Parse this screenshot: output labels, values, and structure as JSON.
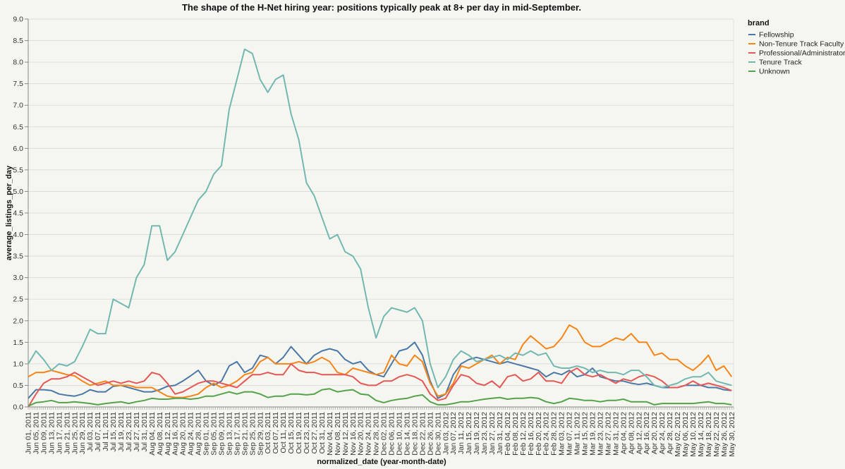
{
  "chart_data": {
    "type": "line",
    "title": "The shape of the H-Net hiring year: positions typically peak at 8+ per day in mid-September.",
    "xlabel": "normalized_date (year-month-date)",
    "ylabel": "average_listings_per_day",
    "ylim": [
      0,
      9
    ],
    "yticks": [
      "0.0",
      "0.5",
      "1.0",
      "1.5",
      "2.0",
      "2.5",
      "3.0",
      "3.5",
      "4.0",
      "4.5",
      "5.0",
      "5.5",
      "6.0",
      "6.5",
      "7.0",
      "7.5",
      "8.0",
      "8.5",
      "9.0"
    ],
    "grid": true,
    "legend": {
      "title": "brand",
      "placement": "right"
    },
    "x": [
      "Jun 01, 2011",
      "Jun 05, 2011",
      "Jun 09, 2011",
      "Jun 13, 2011",
      "Jun 17, 2011",
      "Jun 21, 2011",
      "Jun 25, 2011",
      "Jun 29, 2011",
      "Jul 03, 2011",
      "Jul 07, 2011",
      "Jul 11, 2011",
      "Jul 15, 2011",
      "Jul 19, 2011",
      "Jul 23, 2011",
      "Jul 27, 2011",
      "Jul 31, 2011",
      "Aug 04, 2011",
      "Aug 08, 2011",
      "Aug 12, 2011",
      "Aug 16, 2011",
      "Aug 20, 2011",
      "Aug 24, 2011",
      "Aug 28, 2011",
      "Sep 01, 2011",
      "Sep 05, 2011",
      "Sep 09, 2011",
      "Sep 13, 2011",
      "Sep 17, 2011",
      "Sep 21, 2011",
      "Sep 25, 2011",
      "Sep 29, 2011",
      "Oct 03, 2011",
      "Oct 07, 2011",
      "Oct 11, 2011",
      "Oct 15, 2011",
      "Oct 19, 2011",
      "Oct 23, 2011",
      "Oct 27, 2011",
      "Oct 31, 2011",
      "Nov 04, 2011",
      "Nov 08, 2011",
      "Nov 12, 2011",
      "Nov 16, 2011",
      "Nov 20, 2011",
      "Nov 24, 2011",
      "Nov 28, 2011",
      "Dec 02, 2011",
      "Dec 06, 2011",
      "Dec 10, 2011",
      "Dec 14, 2011",
      "Dec 18, 2011",
      "Dec 22, 2011",
      "Dec 26, 2011",
      "Dec 30, 2011",
      "Jan 03, 2012",
      "Jan 07, 2012",
      "Jan 11, 2012",
      "Jan 15, 2012",
      "Jan 19, 2012",
      "Jan 23, 2012",
      "Jan 27, 2012",
      "Jan 31, 2012",
      "Feb 04, 2012",
      "Feb 08, 2012",
      "Feb 12, 2012",
      "Feb 16, 2012",
      "Feb 20, 2012",
      "Feb 24, 2012",
      "Feb 28, 2012",
      "Mar 03, 2012",
      "Mar 07, 2012",
      "Mar 11, 2012",
      "Mar 15, 2012",
      "Mar 19, 2012",
      "Mar 23, 2012",
      "Mar 27, 2012",
      "Mar 31, 2012",
      "Apr 04, 2012",
      "Apr 08, 2012",
      "Apr 12, 2012",
      "Apr 16, 2012",
      "Apr 20, 2012",
      "Apr 24, 2012",
      "Apr 28, 2012",
      "May 02, 2012",
      "May 06, 2012",
      "May 10, 2012",
      "May 14, 2012",
      "May 18, 2012",
      "May 22, 2012",
      "May 26, 2012",
      "May 30, 2012"
    ],
    "series": [
      {
        "name": "Fellowship",
        "color": "#4c78a8",
        "values": [
          0.2,
          0.4,
          0.4,
          0.38,
          0.3,
          0.27,
          0.25,
          0.3,
          0.4,
          0.35,
          0.35,
          0.48,
          0.5,
          0.45,
          0.4,
          0.35,
          0.35,
          0.4,
          0.48,
          0.5,
          0.6,
          0.72,
          0.85,
          0.6,
          0.5,
          0.6,
          0.95,
          1.05,
          0.8,
          0.9,
          1.2,
          1.15,
          1.0,
          1.15,
          1.4,
          1.2,
          1.0,
          1.2,
          1.3,
          1.35,
          1.3,
          1.1,
          1.0,
          1.05,
          0.85,
          0.75,
          0.7,
          1.0,
          1.3,
          1.35,
          1.5,
          1.2,
          0.6,
          0.2,
          0.3,
          0.75,
          1.0,
          1.1,
          1.15,
          1.1,
          1.05,
          1.0,
          1.05,
          1.0,
          0.95,
          0.9,
          0.85,
          0.7,
          0.8,
          0.75,
          0.85,
          0.7,
          0.75,
          0.9,
          0.7,
          0.65,
          0.6,
          0.6,
          0.55,
          0.52,
          0.55,
          0.5,
          0.45,
          0.45,
          0.45,
          0.5,
          0.5,
          0.5,
          0.45,
          0.45,
          0.4,
          0.38
        ]
      },
      {
        "name": "Non-Tenure Track Faculty",
        "color": "#f58518",
        "values": [
          0.7,
          0.8,
          0.8,
          0.85,
          0.8,
          0.75,
          0.72,
          0.6,
          0.5,
          0.55,
          0.6,
          0.5,
          0.5,
          0.5,
          0.45,
          0.45,
          0.45,
          0.35,
          0.25,
          0.22,
          0.22,
          0.25,
          0.3,
          0.45,
          0.55,
          0.45,
          0.5,
          0.6,
          0.75,
          0.8,
          1.05,
          1.15,
          1.0,
          1.0,
          1.0,
          1.05,
          1.0,
          1.05,
          1.15,
          1.05,
          0.8,
          0.75,
          0.9,
          0.85,
          0.8,
          0.75,
          0.8,
          1.2,
          1.0,
          0.95,
          1.2,
          1.05,
          0.55,
          0.25,
          0.3,
          0.55,
          0.95,
          0.9,
          1.0,
          1.1,
          1.2,
          1.0,
          1.15,
          1.1,
          1.45,
          1.65,
          1.5,
          1.35,
          1.4,
          1.6,
          1.9,
          1.8,
          1.5,
          1.4,
          1.4,
          1.5,
          1.6,
          1.55,
          1.7,
          1.5,
          1.5,
          1.2,
          1.25,
          1.1,
          1.1,
          0.95,
          0.85,
          1.0,
          1.2,
          0.85,
          0.95,
          0.7
        ]
      },
      {
        "name": "Professional/Administrator",
        "color": "#e45756",
        "values": [
          0.0,
          0.3,
          0.55,
          0.65,
          0.65,
          0.7,
          0.8,
          0.7,
          0.6,
          0.5,
          0.55,
          0.6,
          0.55,
          0.6,
          0.55,
          0.6,
          0.8,
          0.75,
          0.55,
          0.3,
          0.35,
          0.45,
          0.55,
          0.6,
          0.6,
          0.55,
          0.5,
          0.45,
          0.6,
          0.75,
          0.75,
          0.8,
          0.75,
          0.75,
          1.0,
          0.85,
          0.8,
          0.8,
          0.75,
          0.75,
          0.75,
          0.75,
          0.7,
          0.55,
          0.5,
          0.5,
          0.6,
          0.6,
          0.7,
          0.75,
          0.7,
          0.6,
          0.3,
          0.15,
          0.2,
          0.5,
          0.75,
          0.7,
          0.55,
          0.5,
          0.6,
          0.45,
          0.7,
          0.75,
          0.6,
          0.65,
          0.8,
          0.6,
          0.6,
          0.55,
          0.8,
          0.9,
          0.75,
          0.7,
          0.75,
          0.65,
          0.55,
          0.65,
          0.6,
          0.7,
          0.75,
          0.7,
          0.6,
          0.45,
          0.45,
          0.5,
          0.6,
          0.5,
          0.55,
          0.5,
          0.45,
          0.38
        ]
      },
      {
        "name": "Tenure Track",
        "color": "#72b7b2",
        "values": [
          1.0,
          1.3,
          1.1,
          0.85,
          1.0,
          0.95,
          1.05,
          1.4,
          1.8,
          1.7,
          1.7,
          2.5,
          2.4,
          2.3,
          3.0,
          3.3,
          4.2,
          4.2,
          3.4,
          3.6,
          4.0,
          4.4,
          4.8,
          5.0,
          5.4,
          5.6,
          6.9,
          7.6,
          8.3,
          8.2,
          7.6,
          7.3,
          7.6,
          7.7,
          6.8,
          6.2,
          5.2,
          4.9,
          4.4,
          3.9,
          4.0,
          3.6,
          3.5,
          3.2,
          2.3,
          1.6,
          2.1,
          2.3,
          2.25,
          2.2,
          2.3,
          2.0,
          1.0,
          0.45,
          0.7,
          1.1,
          1.3,
          1.2,
          1.05,
          1.1,
          1.15,
          1.2,
          1.1,
          1.25,
          1.2,
          1.3,
          1.2,
          1.25,
          0.95,
          0.9,
          0.9,
          0.95,
          0.9,
          0.8,
          0.85,
          0.8,
          0.8,
          0.75,
          0.85,
          0.85,
          0.7,
          0.5,
          0.45,
          0.5,
          0.55,
          0.65,
          0.7,
          0.7,
          0.8,
          0.6,
          0.55,
          0.5
        ]
      },
      {
        "name": "Unknown",
        "color": "#54a24b",
        "values": [
          0.02,
          0.1,
          0.12,
          0.15,
          0.1,
          0.1,
          0.12,
          0.1,
          0.08,
          0.05,
          0.08,
          0.1,
          0.12,
          0.08,
          0.12,
          0.15,
          0.2,
          0.18,
          0.18,
          0.2,
          0.2,
          0.18,
          0.2,
          0.25,
          0.25,
          0.3,
          0.35,
          0.3,
          0.35,
          0.35,
          0.3,
          0.22,
          0.25,
          0.25,
          0.3,
          0.3,
          0.28,
          0.3,
          0.4,
          0.42,
          0.35,
          0.38,
          0.4,
          0.3,
          0.28,
          0.15,
          0.1,
          0.15,
          0.18,
          0.2,
          0.25,
          0.28,
          0.12,
          0.05,
          0.05,
          0.08,
          0.12,
          0.12,
          0.15,
          0.18,
          0.2,
          0.22,
          0.18,
          0.2,
          0.2,
          0.22,
          0.2,
          0.12,
          0.08,
          0.12,
          0.2,
          0.18,
          0.15,
          0.15,
          0.12,
          0.15,
          0.15,
          0.18,
          0.12,
          0.12,
          0.12,
          0.05,
          0.08,
          0.08,
          0.08,
          0.08,
          0.08,
          0.1,
          0.12,
          0.08,
          0.08,
          0.05
        ]
      }
    ]
  }
}
